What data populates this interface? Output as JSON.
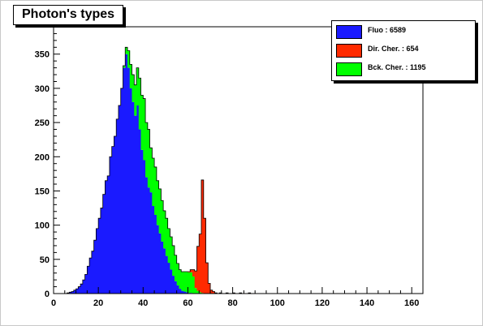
{
  "title": "Photon's types",
  "legend": [
    {
      "label": "Fluo : 6589",
      "color": "#1a1aff"
    },
    {
      "label": "Dir. Cher. : 654",
      "color": "#ff2a00"
    },
    {
      "label": "Bck. Cher. : 1195",
      "color": "#00ff00"
    }
  ],
  "chart_data": {
    "type": "bar",
    "stacked": true,
    "title": "Photon's types",
    "xlabel": "",
    "ylabel": "",
    "xlim": [
      0,
      165
    ],
    "ylim": [
      0,
      390
    ],
    "x_ticks": [
      0,
      20,
      40,
      60,
      80,
      100,
      120,
      140,
      160
    ],
    "y_ticks": [
      0,
      50,
      100,
      150,
      200,
      250,
      300,
      350
    ],
    "bin_width": 1,
    "x": [
      5,
      6,
      7,
      8,
      9,
      10,
      11,
      12,
      13,
      14,
      15,
      16,
      17,
      18,
      19,
      20,
      21,
      22,
      23,
      24,
      25,
      26,
      27,
      28,
      29,
      30,
      31,
      32,
      33,
      34,
      35,
      36,
      37,
      38,
      39,
      40,
      41,
      42,
      43,
      44,
      45,
      46,
      47,
      48,
      49,
      50,
      51,
      52,
      53,
      54,
      55,
      56,
      57,
      58,
      59,
      60,
      61,
      62,
      63,
      64,
      65,
      66,
      67,
      68,
      69,
      70,
      71,
      72,
      73,
      74,
      75,
      76,
      77,
      78,
      79,
      80,
      81,
      82,
      83,
      84,
      85,
      86,
      87,
      88,
      89,
      90
    ],
    "series": [
      {
        "name": "Fluo : 6589",
        "color": "#1a1aff",
        "values": [
          0,
          1,
          2,
          3,
          5,
          7,
          10,
          14,
          20,
          28,
          40,
          52,
          62,
          78,
          95,
          110,
          125,
          145,
          165,
          172,
          200,
          215,
          230,
          255,
          275,
          300,
          330,
          350,
          330,
          300,
          280,
          260,
          275,
          240,
          210,
          195,
          170,
          155,
          148,
          128,
          115,
          100,
          88,
          76,
          66,
          55,
          45,
          35,
          26,
          18,
          12,
          7,
          4,
          3,
          2,
          1,
          1,
          0,
          0,
          0,
          0,
          0,
          0,
          0,
          0,
          0,
          0,
          0,
          0,
          0,
          0,
          0,
          0,
          0,
          0,
          0,
          0,
          0,
          0,
          0,
          0,
          0,
          0,
          0,
          0,
          0
        ]
      },
      {
        "name": "Bck. Cher. : 1195",
        "color": "#00ff00",
        "values": [
          0,
          0,
          0,
          0,
          0,
          0,
          0,
          0,
          0,
          0,
          0,
          0,
          0,
          0,
          0,
          0,
          0,
          0,
          0,
          0,
          0,
          0,
          0,
          0,
          0,
          0,
          3,
          10,
          25,
          35,
          40,
          45,
          55,
          75,
          80,
          90,
          80,
          85,
          65,
          70,
          70,
          65,
          65,
          60,
          55,
          55,
          50,
          48,
          44,
          38,
          32,
          28,
          28,
          29,
          30,
          30,
          30,
          25,
          8,
          4,
          2,
          1,
          0,
          0,
          0,
          0,
          0,
          0,
          0,
          0,
          0,
          0,
          0,
          0,
          0,
          0,
          0,
          0,
          0,
          0,
          0,
          0,
          0,
          0,
          0,
          0
        ]
      },
      {
        "name": "Dir. Cher. : 654",
        "color": "#ff2a00",
        "values": [
          0,
          0,
          0,
          0,
          0,
          0,
          0,
          0,
          0,
          0,
          0,
          0,
          0,
          0,
          0,
          0,
          0,
          0,
          0,
          0,
          0,
          0,
          0,
          0,
          0,
          0,
          0,
          0,
          0,
          0,
          0,
          0,
          0,
          0,
          0,
          0,
          0,
          0,
          0,
          0,
          0,
          0,
          0,
          0,
          0,
          0,
          0,
          0,
          0,
          0,
          0,
          0,
          0,
          0,
          0,
          1,
          4,
          10,
          25,
          65,
          85,
          165,
          110,
          45,
          15,
          5,
          3,
          1,
          0,
          1,
          0,
          0,
          1,
          0,
          0,
          1,
          0,
          0,
          1,
          0,
          0,
          0,
          1,
          0,
          0,
          0
        ]
      }
    ]
  }
}
